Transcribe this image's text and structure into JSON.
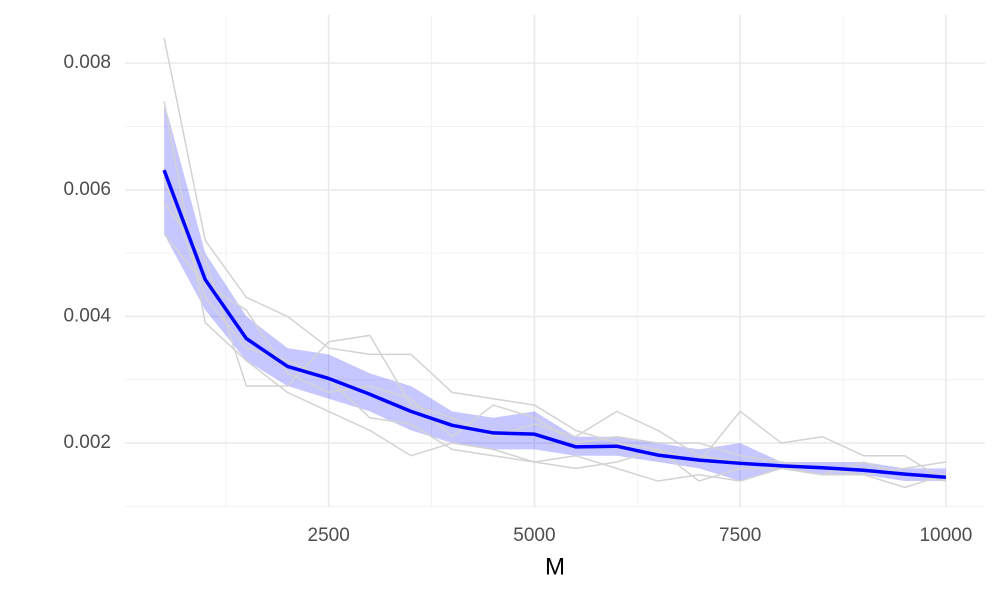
{
  "chart_data": {
    "type": "line",
    "xlabel": "M",
    "x": [
      500,
      1000,
      1500,
      2000,
      2500,
      3000,
      3500,
      4000,
      4500,
      5000,
      5500,
      6000,
      6500,
      7000,
      7500,
      8000,
      8500,
      9000,
      9500,
      10000
    ],
    "xlim": [
      25,
      10475
    ],
    "ylim": [
      0.00099,
      0.00876
    ],
    "xticks": [
      2500,
      5000,
      7500,
      10000
    ],
    "yticks": [
      0.002,
      0.004,
      0.006,
      0.008
    ],
    "grid": true,
    "band": {
      "color": "#0000ff",
      "upper": [
        0.0074,
        0.005,
        0.004,
        0.0035,
        0.0034,
        0.0031,
        0.0029,
        0.0025,
        0.0024,
        0.0025,
        0.0021,
        0.0021,
        0.002,
        0.0019,
        0.002,
        0.0017,
        0.0017,
        0.0017,
        0.0016,
        0.0016
      ],
      "lower": [
        0.0053,
        0.0041,
        0.0033,
        0.0029,
        0.0027,
        0.0025,
        0.0022,
        0.002,
        0.0019,
        0.0019,
        0.0018,
        0.0018,
        0.0017,
        0.0016,
        0.0014,
        0.0016,
        0.0015,
        0.0015,
        0.0014,
        0.0014
      ]
    },
    "series": [
      {
        "color": "#d3d3d3",
        "values": [
          0.0084,
          0.0052,
          0.0043,
          0.004,
          0.0035,
          0.0034,
          0.0034,
          0.0028,
          0.0027,
          0.0026,
          0.0022,
          0.002,
          0.0019,
          0.0017,
          0.0025,
          0.002,
          0.0021,
          0.0018,
          0.0018,
          0.0014
        ]
      },
      {
        "color": "#d3d3d3",
        "values": [
          0.0074,
          0.0039,
          0.0033,
          0.0028,
          0.0025,
          0.0022,
          0.0018,
          0.002,
          0.0019,
          0.0017,
          0.0018,
          0.0016,
          0.0014,
          0.0015,
          0.0014,
          0.0016,
          0.0015,
          0.0015,
          0.0013,
          0.0015
        ]
      },
      {
        "color": "#d3d3d3",
        "values": [
          0.0058,
          0.0049,
          0.0029,
          0.0029,
          0.0036,
          0.0037,
          0.0026,
          0.0024,
          0.0021,
          0.0023,
          0.0021,
          0.0025,
          0.0022,
          0.0018,
          0.0017,
          0.0016,
          0.0016,
          0.0015,
          0.0016,
          0.0017
        ]
      },
      {
        "color": "#d3d3d3",
        "values": [
          0.0053,
          0.0045,
          0.0041,
          0.0031,
          0.0028,
          0.0029,
          0.0027,
          0.0021,
          0.0026,
          0.0024,
          0.002,
          0.0021,
          0.002,
          0.002,
          0.0018,
          0.0017,
          0.0016,
          0.0016,
          0.0015,
          0.0014
        ]
      },
      {
        "color": "#d3d3d3",
        "values": [
          0.0062,
          0.0043,
          0.0035,
          0.0033,
          0.003,
          0.0024,
          0.0023,
          0.0019,
          0.0018,
          0.0017,
          0.0016,
          0.0017,
          0.0019,
          0.0014,
          0.0016,
          0.0016,
          0.0015,
          0.0017,
          0.0015,
          0.0015
        ]
      },
      {
        "color": "#0000ff",
        "values": [
          0.00631,
          0.00458,
          0.00365,
          0.00321,
          0.00302,
          0.00277,
          0.0025,
          0.00228,
          0.00216,
          0.00214,
          0.00194,
          0.00195,
          0.00181,
          0.00173,
          0.00168,
          0.00164,
          0.00161,
          0.00157,
          0.00151,
          0.00146
        ]
      }
    ]
  }
}
